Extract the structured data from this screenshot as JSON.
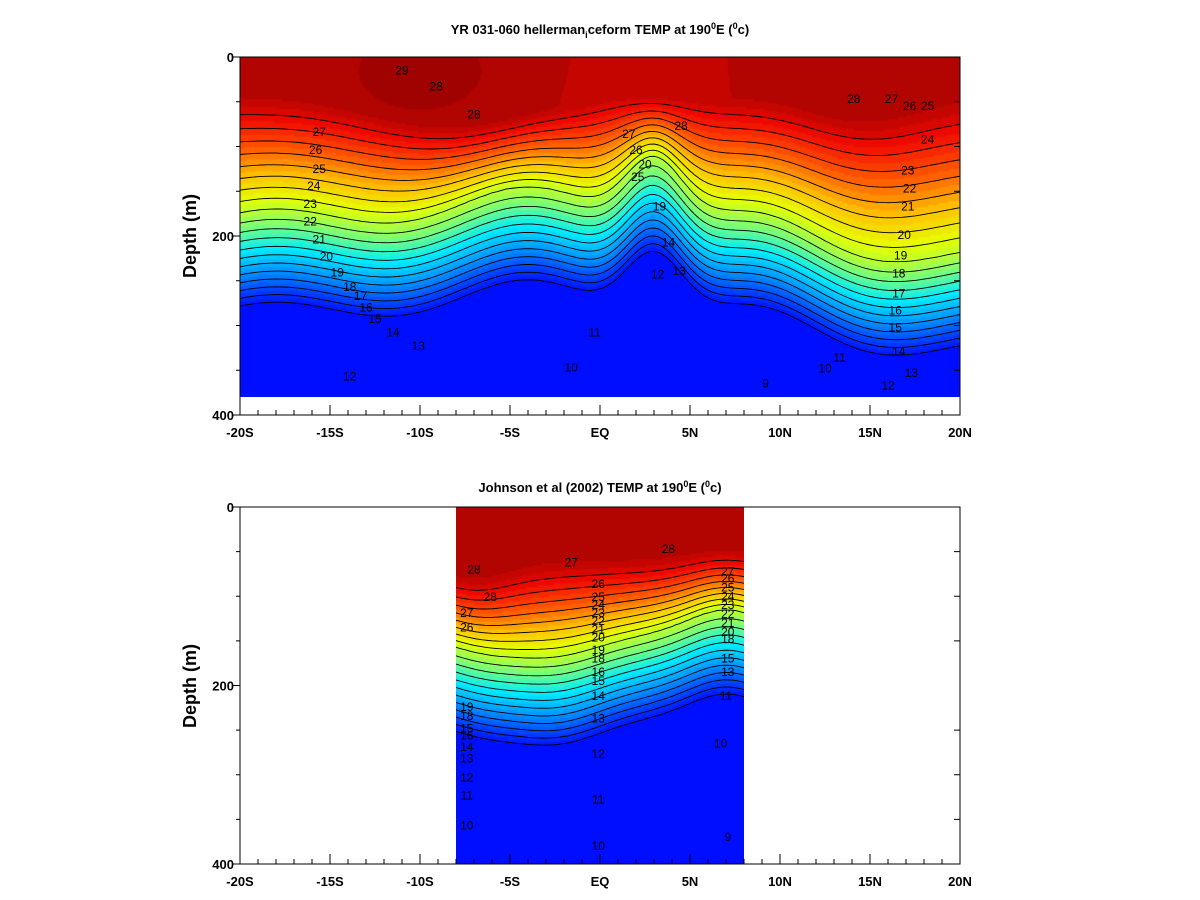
{
  "chart_data": [
    {
      "type": "heatmap",
      "subtype": "filled-contour",
      "title_main": "YR 031-060 hellerman",
      "title_sub": "i",
      "title_rest": "ceform TEMP at 190",
      "title_deg_sup": "0",
      "title_unit_open": "E (",
      "title_unit_sup": "0",
      "title_unit_close": "c)",
      "xlabel": "",
      "ylabel": "Depth (m)",
      "x_ticks": [
        "-20S",
        "-15S",
        "-10S",
        "-5S",
        "EQ",
        "5N",
        "10N",
        "15N",
        "20N"
      ],
      "x_tick_values": [
        -20,
        -15,
        -10,
        -5,
        0,
        5,
        10,
        15,
        20
      ],
      "y_ticks": [
        "0",
        "200",
        "400"
      ],
      "y_tick_values": [
        0,
        200,
        400
      ],
      "xlim": [
        -20,
        20
      ],
      "ylim": [
        400,
        0
      ],
      "data_xrange": [
        -20,
        20
      ],
      "data_yrange": [
        0,
        380
      ],
      "contour_levels": [
        9,
        10,
        11,
        12,
        13,
        14,
        15,
        16,
        17,
        18,
        19,
        20,
        21,
        22,
        23,
        24,
        25,
        26,
        27,
        28
      ],
      "colormap_range": [
        8,
        30
      ],
      "labels": [
        {
          "text": "29",
          "x": -11.0,
          "y": 15
        },
        {
          "text": "28",
          "x": -9.1,
          "y": 33
        },
        {
          "text": "28",
          "x": -7.0,
          "y": 64
        },
        {
          "text": "27",
          "x": -15.6,
          "y": 84
        },
        {
          "text": "26",
          "x": -15.8,
          "y": 104
        },
        {
          "text": "25",
          "x": -15.6,
          "y": 125
        },
        {
          "text": "24",
          "x": -15.9,
          "y": 144
        },
        {
          "text": "23",
          "x": -16.1,
          "y": 164
        },
        {
          "text": "22",
          "x": -16.1,
          "y": 184
        },
        {
          "text": "21",
          "x": -15.6,
          "y": 204
        },
        {
          "text": "20",
          "x": -15.2,
          "y": 223
        },
        {
          "text": "19",
          "x": -14.6,
          "y": 241
        },
        {
          "text": "18",
          "x": -13.9,
          "y": 257
        },
        {
          "text": "17",
          "x": -13.3,
          "y": 267
        },
        {
          "text": "16",
          "x": -13.0,
          "y": 280
        },
        {
          "text": "15",
          "x": -12.5,
          "y": 293
        },
        {
          "text": "14",
          "x": -11.5,
          "y": 308
        },
        {
          "text": "13",
          "x": -10.1,
          "y": 323
        },
        {
          "text": "12",
          "x": -13.9,
          "y": 357
        },
        {
          "text": "11",
          "x": -0.3,
          "y": 308
        },
        {
          "text": "10",
          "x": -1.6,
          "y": 347
        },
        {
          "text": "28",
          "x": 4.5,
          "y": 77
        },
        {
          "text": "27",
          "x": 1.6,
          "y": 86
        },
        {
          "text": "26",
          "x": 2.0,
          "y": 104
        },
        {
          "text": "20",
          "x": 2.5,
          "y": 120
        },
        {
          "text": "25",
          "x": 2.1,
          "y": 134
        },
        {
          "text": "19",
          "x": 3.3,
          "y": 167
        },
        {
          "text": "14",
          "x": 3.8,
          "y": 207
        },
        {
          "text": "13",
          "x": 4.4,
          "y": 239
        },
        {
          "text": "12",
          "x": 3.2,
          "y": 243
        },
        {
          "text": "9",
          "x": 9.2,
          "y": 365
        },
        {
          "text": "10",
          "x": 12.5,
          "y": 348
        },
        {
          "text": "11",
          "x": 13.3,
          "y": 336
        },
        {
          "text": "28",
          "x": 14.1,
          "y": 47
        },
        {
          "text": "27",
          "x": 16.2,
          "y": 47
        },
        {
          "text": "26",
          "x": 17.2,
          "y": 55
        },
        {
          "text": "25",
          "x": 18.2,
          "y": 55
        },
        {
          "text": "24",
          "x": 18.2,
          "y": 92
        },
        {
          "text": "23",
          "x": 17.1,
          "y": 127
        },
        {
          "text": "22",
          "x": 17.2,
          "y": 147
        },
        {
          "text": "21",
          "x": 17.1,
          "y": 167
        },
        {
          "text": "20",
          "x": 16.9,
          "y": 199
        },
        {
          "text": "19",
          "x": 16.7,
          "y": 222
        },
        {
          "text": "18",
          "x": 16.6,
          "y": 242
        },
        {
          "text": "17",
          "x": 16.6,
          "y": 264
        },
        {
          "text": "16",
          "x": 16.4,
          "y": 283
        },
        {
          "text": "15",
          "x": 16.4,
          "y": 302
        },
        {
          "text": "14",
          "x": 16.6,
          "y": 329
        },
        {
          "text": "13",
          "x": 17.3,
          "y": 353
        },
        {
          "text": "12",
          "x": 16.0,
          "y": 367
        }
      ]
    },
    {
      "type": "heatmap",
      "subtype": "filled-contour",
      "title_main": "Johnson et al (2002) TEMP at 190",
      "title_deg_sup": "0",
      "title_unit_open": "E (",
      "title_unit_sup": "0",
      "title_unit_close": "c)",
      "xlabel": "",
      "ylabel": "Depth (m)",
      "x_ticks": [
        "-20S",
        "-15S",
        "-10S",
        "-5S",
        "EQ",
        "5N",
        "10N",
        "15N",
        "20N"
      ],
      "x_tick_values": [
        -20,
        -15,
        -10,
        -5,
        0,
        5,
        10,
        15,
        20
      ],
      "y_ticks": [
        "0",
        "200",
        "400"
      ],
      "y_tick_values": [
        0,
        200,
        400
      ],
      "xlim": [
        -20,
        20
      ],
      "ylim": [
        400,
        0
      ],
      "data_xrange": [
        -8,
        8
      ],
      "data_yrange": [
        0,
        400
      ],
      "contour_levels": [
        9,
        10,
        11,
        12,
        13,
        14,
        15,
        16,
        17,
        18,
        19,
        20,
        21,
        22,
        23,
        24,
        25,
        26,
        27,
        28
      ],
      "colormap_range": [
        8,
        30
      ],
      "labels": [
        {
          "text": "28",
          "x": -7.0,
          "y": 70
        },
        {
          "text": "28",
          "x": -6.1,
          "y": 101
        },
        {
          "text": "27",
          "x": -7.4,
          "y": 119
        },
        {
          "text": "26",
          "x": -7.4,
          "y": 135
        },
        {
          "text": "27",
          "x": -1.6,
          "y": 62
        },
        {
          "text": "28",
          "x": 3.8,
          "y": 47
        },
        {
          "text": "26",
          "x": -0.1,
          "y": 86
        },
        {
          "text": "25",
          "x": -0.1,
          "y": 101
        },
        {
          "text": "24",
          "x": -0.1,
          "y": 110
        },
        {
          "text": "23",
          "x": -0.1,
          "y": 119
        },
        {
          "text": "22",
          "x": -0.1,
          "y": 128
        },
        {
          "text": "21",
          "x": -0.1,
          "y": 137
        },
        {
          "text": "20",
          "x": -0.1,
          "y": 146
        },
        {
          "text": "19",
          "x": -0.1,
          "y": 160
        },
        {
          "text": "18",
          "x": -0.1,
          "y": 170
        },
        {
          "text": "16",
          "x": -0.1,
          "y": 185
        },
        {
          "text": "15",
          "x": -0.1,
          "y": 195
        },
        {
          "text": "14",
          "x": -0.1,
          "y": 212
        },
        {
          "text": "13",
          "x": -0.1,
          "y": 237
        },
        {
          "text": "12",
          "x": -0.1,
          "y": 277
        },
        {
          "text": "11",
          "x": -0.1,
          "y": 328
        },
        {
          "text": "10",
          "x": -0.1,
          "y": 380
        },
        {
          "text": "19",
          "x": -7.4,
          "y": 224
        },
        {
          "text": "18",
          "x": -7.4,
          "y": 234
        },
        {
          "text": "15",
          "x": -7.4,
          "y": 248
        },
        {
          "text": "16",
          "x": -7.4,
          "y": 256
        },
        {
          "text": "14",
          "x": -7.4,
          "y": 269
        },
        {
          "text": "13",
          "x": -7.4,
          "y": 282
        },
        {
          "text": "12",
          "x": -7.4,
          "y": 303
        },
        {
          "text": "11",
          "x": -7.4,
          "y": 323
        },
        {
          "text": "10",
          "x": -7.4,
          "y": 357
        },
        {
          "text": "27",
          "x": 7.1,
          "y": 72
        },
        {
          "text": "26",
          "x": 7.1,
          "y": 80
        },
        {
          "text": "25",
          "x": 7.1,
          "y": 90
        },
        {
          "text": "24",
          "x": 7.1,
          "y": 100
        },
        {
          "text": "23",
          "x": 7.1,
          "y": 110
        },
        {
          "text": "22",
          "x": 7.1,
          "y": 120
        },
        {
          "text": "21",
          "x": 7.1,
          "y": 130
        },
        {
          "text": "20",
          "x": 7.1,
          "y": 140
        },
        {
          "text": "18",
          "x": 7.1,
          "y": 148
        },
        {
          "text": "15",
          "x": 7.1,
          "y": 170
        },
        {
          "text": "13",
          "x": 7.1,
          "y": 185
        },
        {
          "text": "11",
          "x": 7.0,
          "y": 212
        },
        {
          "text": "10",
          "x": 6.7,
          "y": 265
        },
        {
          "text": "9",
          "x": 7.1,
          "y": 370
        }
      ]
    }
  ]
}
